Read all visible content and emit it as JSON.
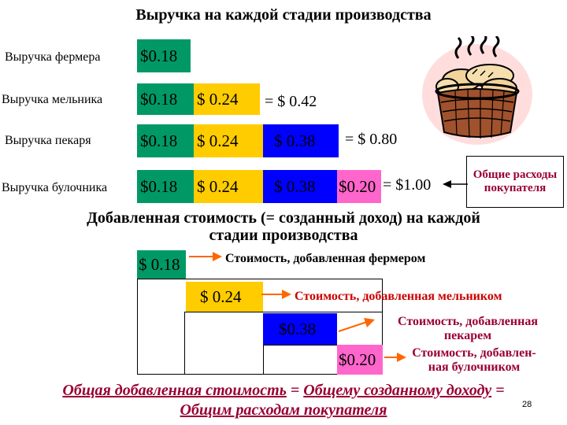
{
  "title": "Выручка на каждой стадии производства",
  "rows": [
    {
      "label": "Выручка фермера"
    },
    {
      "label": "Выручка мельника",
      "total": "= $ 0.42"
    },
    {
      "label": "Выручка пекаря",
      "total": "= $ 0.80"
    },
    {
      "label": "Выручка булочника",
      "total": "= $1.00"
    }
  ],
  "values": {
    "farmer": "$0.18",
    "miller": "$ 0.24",
    "baker": "$ 0.38",
    "seller": "$0.20"
  },
  "callout": "Общие расходы покупателя",
  "section_title": "Добавленная стоимость (= созданный доход) на каждой стадии производства",
  "value_added": {
    "farmer_value": "$ 0.18",
    "farmer_label": "Стоимость, добавленная фермером",
    "miller_value": "$ 0.24",
    "miller_label": "Стоимость, добавленная мельником",
    "baker_value": "$0.38",
    "baker_label": "Стоимость, добавленная пекарем",
    "seller_value": "$0.20",
    "seller_label": "Стоимость, добавлен-ная булочником"
  },
  "footer": {
    "part1": "Общая добавленная стоимость",
    "eq1": " = ",
    "part2": "Общему созданному доходу",
    "eq2": " =",
    "part3": "Общим расходам покупателя"
  },
  "slide_number": "28",
  "colors": {
    "farmer": "#009966",
    "miller": "#ffcc00",
    "baker": "#0000ff",
    "seller": "#ff66cc",
    "accent": "#990033",
    "arrow": "#ff6600"
  }
}
